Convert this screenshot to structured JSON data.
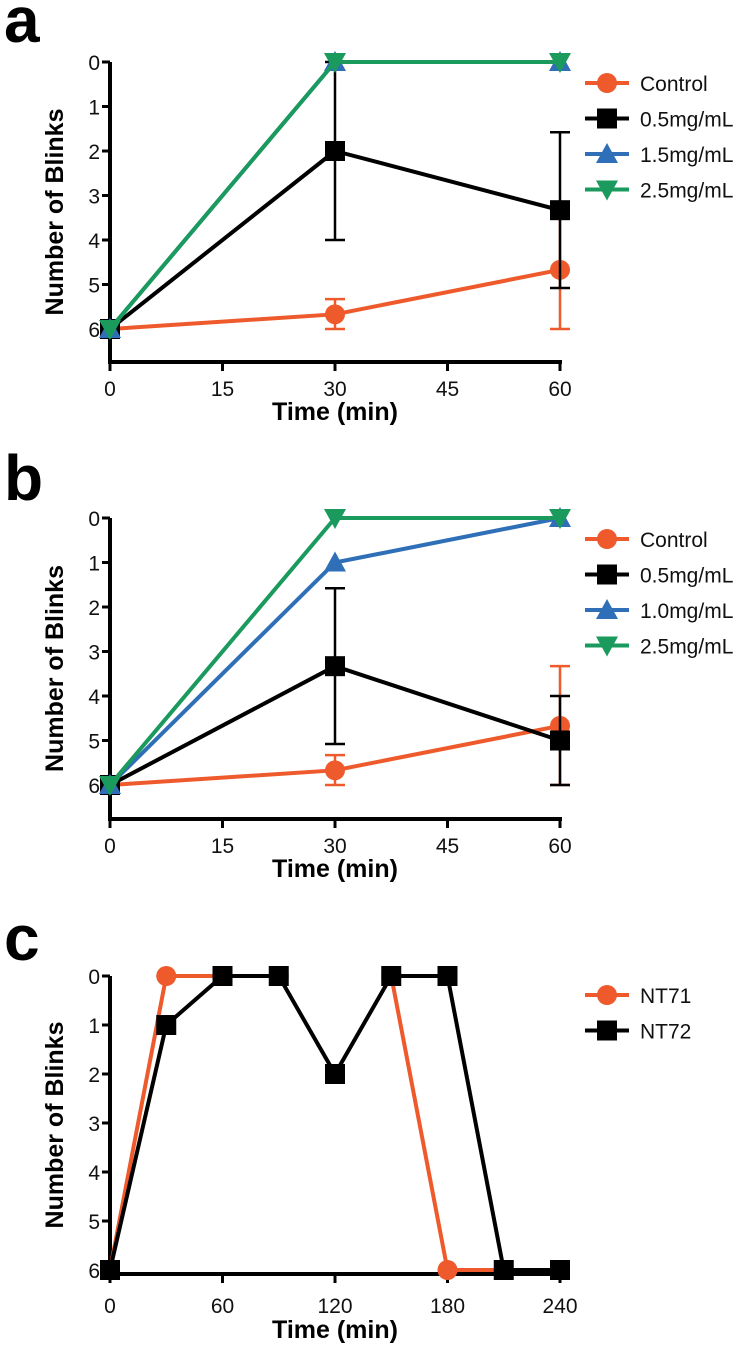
{
  "colors": {
    "orange": "#ee5a2c",
    "black": "#000000",
    "blue": "#2f6fb8",
    "green": "#1a9a5c"
  },
  "chart_data": [
    {
      "panel": "a",
      "type": "line",
      "xlabel": "Time (min)",
      "ylabel": "Number of Blinks",
      "xlim": [
        0,
        60
      ],
      "xticks": [
        0,
        15,
        30,
        45,
        60
      ],
      "ylim": [
        0,
        6
      ],
      "yinverted": true,
      "yticks": [
        0,
        1,
        2,
        3,
        4,
        5,
        6
      ],
      "legend_position": "right",
      "x": [
        0,
        30,
        60
      ],
      "series": [
        {
          "name": "Control",
          "color": "#ee5a2c",
          "marker": "circle",
          "values": [
            6,
            5.67,
            4.67
          ],
          "err_low": [
            6,
            5.33,
            3.33
          ],
          "err_high": [
            6,
            6,
            6
          ]
        },
        {
          "name": "0.5mg/mL",
          "color": "#000000",
          "marker": "square",
          "values": [
            6,
            2,
            3.33
          ],
          "err_low": [
            6,
            0,
            1.58
          ],
          "err_high": [
            6,
            4,
            5.08
          ]
        },
        {
          "name": "1.5mg/mL",
          "color": "#2f6fb8",
          "marker": "triangle-up",
          "values": [
            6,
            0,
            0
          ]
        },
        {
          "name": "2.5mg/mL",
          "color": "#1a9a5c",
          "marker": "triangle-down",
          "values": [
            6,
            0,
            0
          ]
        }
      ]
    },
    {
      "panel": "b",
      "type": "line",
      "xlabel": "Time (min)",
      "ylabel": "Number of Blinks",
      "xlim": [
        0,
        60
      ],
      "xticks": [
        0,
        15,
        30,
        45,
        60
      ],
      "ylim": [
        0,
        6
      ],
      "yinverted": true,
      "yticks": [
        0,
        1,
        2,
        3,
        4,
        5,
        6
      ],
      "legend_position": "right",
      "x": [
        0,
        30,
        60
      ],
      "series": [
        {
          "name": "Control",
          "color": "#ee5a2c",
          "marker": "circle",
          "values": [
            6,
            5.67,
            4.67
          ],
          "err_low": [
            6,
            5.33,
            3.33
          ],
          "err_high": [
            6,
            6,
            6
          ]
        },
        {
          "name": "0.5mg/mL",
          "color": "#000000",
          "marker": "square",
          "values": [
            6,
            3.33,
            5
          ],
          "err_low": [
            6,
            1.58,
            4
          ],
          "err_high": [
            6,
            5.08,
            6
          ]
        },
        {
          "name": "1.0mg/mL",
          "color": "#2f6fb8",
          "marker": "triangle-up",
          "values": [
            6,
            1,
            0
          ]
        },
        {
          "name": "2.5mg/mL",
          "color": "#1a9a5c",
          "marker": "triangle-down",
          "values": [
            6,
            0,
            0
          ]
        }
      ]
    },
    {
      "panel": "c",
      "type": "line",
      "xlabel": "Time (min)",
      "ylabel": "Number of Blinks",
      "xlim": [
        0,
        240
      ],
      "xticks": [
        0,
        60,
        120,
        180,
        240
      ],
      "ylim": [
        0,
        6
      ],
      "yinverted": true,
      "yticks": [
        0,
        1,
        2,
        3,
        4,
        5,
        6
      ],
      "legend_position": "right",
      "x": [
        0,
        30,
        60,
        90,
        120,
        150,
        180,
        210,
        240
      ],
      "series": [
        {
          "name": "NT71",
          "color": "#ee5a2c",
          "marker": "circle",
          "values": [
            6,
            0,
            0,
            0,
            null,
            0,
            6,
            6,
            6
          ]
        },
        {
          "name": "NT72",
          "color": "#000000",
          "marker": "square",
          "values": [
            6,
            1,
            0,
            0,
            2,
            0,
            0,
            6,
            6
          ]
        }
      ]
    }
  ]
}
